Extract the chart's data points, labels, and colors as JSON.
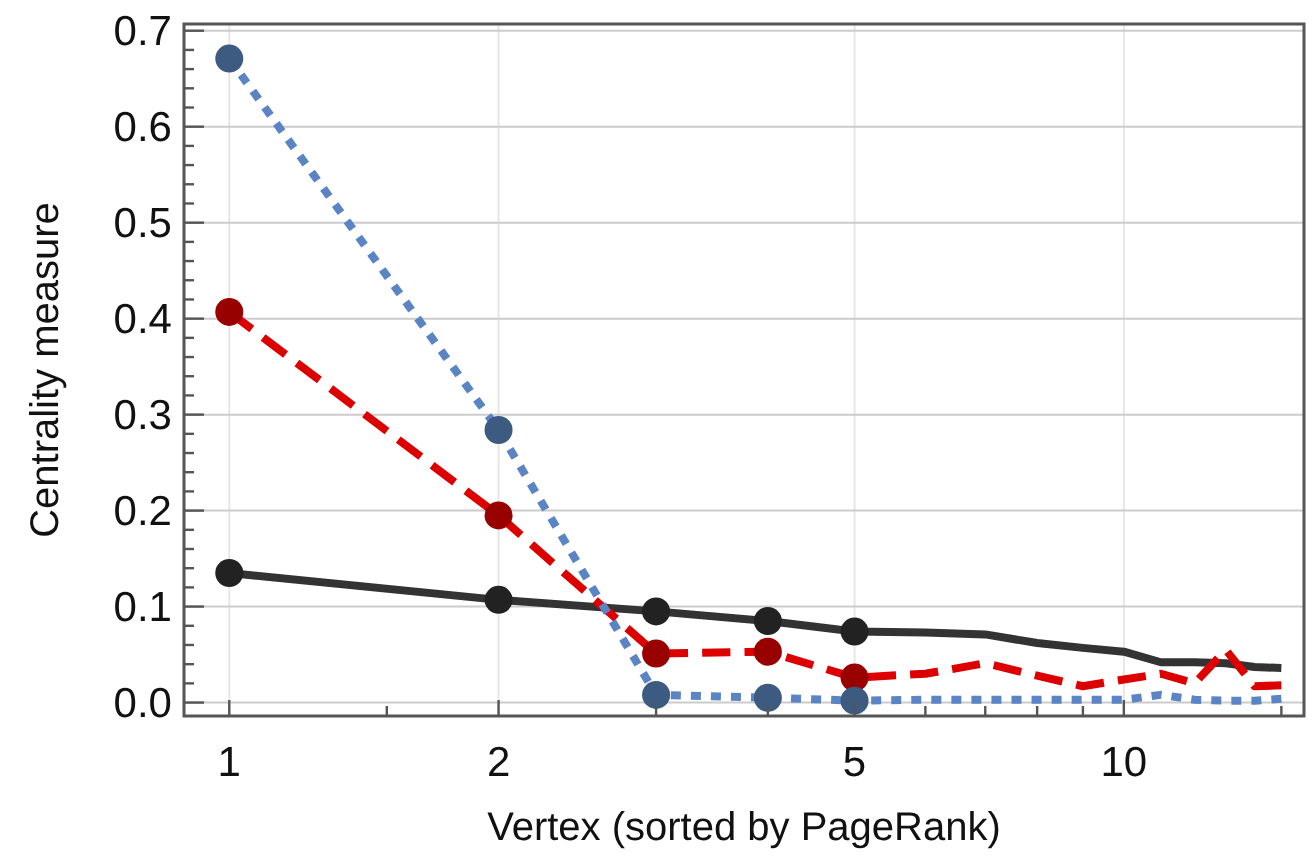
{
  "chart_data": {
    "type": "line",
    "xlabel": "Vertex (sorted by PageRank)",
    "ylabel": "Centrality measure",
    "log": "x",
    "grid": true,
    "xlim": [
      0.89,
      15.9
    ],
    "ylim": [
      -0.014,
      0.707
    ],
    "xticks": [
      1,
      {
        "value": 1.5,
        "label": null
      },
      2,
      {
        "value": 3,
        "label": null
      },
      {
        "value": 4,
        "label": null
      },
      5,
      {
        "value": 6,
        "label": null
      },
      {
        "value": 7,
        "label": null
      },
      {
        "value": 8,
        "label": null
      },
      {
        "value": 9,
        "label": null
      },
      10,
      {
        "value": 15,
        "label": null
      }
    ],
    "yticks": [
      {
        "value": 0,
        "label": "0.0"
      },
      {
        "value": 0.02,
        "label": null
      },
      {
        "value": 0.04,
        "label": null
      },
      {
        "value": 0.06,
        "label": null
      },
      {
        "value": 0.08,
        "label": null
      },
      0.1,
      {
        "value": 0.12,
        "label": null
      },
      {
        "value": 0.14,
        "label": null
      },
      {
        "value": 0.16,
        "label": null
      },
      {
        "value": 0.18,
        "label": null
      },
      0.2,
      {
        "value": 0.22,
        "label": null
      },
      {
        "value": 0.24,
        "label": null
      },
      {
        "value": 0.26,
        "label": null
      },
      {
        "value": 0.28,
        "label": null
      },
      0.3,
      {
        "value": 0.32,
        "label": null
      },
      {
        "value": 0.34,
        "label": null
      },
      {
        "value": 0.36,
        "label": null
      },
      {
        "value": 0.38,
        "label": null
      },
      0.4,
      {
        "value": 0.42,
        "label": null
      },
      {
        "value": 0.44,
        "label": null
      },
      {
        "value": 0.46,
        "label": null
      },
      {
        "value": 0.48,
        "label": null
      },
      0.5,
      {
        "value": 0.52,
        "label": null
      },
      {
        "value": 0.54,
        "label": null
      },
      {
        "value": 0.56,
        "label": null
      },
      {
        "value": 0.58,
        "label": null
      },
      0.6,
      {
        "value": 0.62,
        "label": null
      },
      {
        "value": 0.64,
        "label": null
      },
      {
        "value": 0.66,
        "label": null
      },
      {
        "value": 0.68,
        "label": null
      },
      0.7
    ],
    "series": [
      {
        "color": "#333333",
        "line_style": "solid",
        "x": [
          1,
          2,
          3,
          4,
          5,
          6,
          7,
          8,
          9,
          10,
          11,
          12,
          13,
          14,
          15
        ],
        "values": [
          0.135,
          0.107,
          0.095,
          0.085,
          0.074,
          0.073,
          0.071,
          0.062,
          0.057,
          0.053,
          0.042,
          0.042,
          0.041,
          0.037,
          0.036
        ]
      },
      {
        "color": "#dd0000",
        "line_style": "dashed",
        "x": [
          1,
          2,
          3,
          4,
          5,
          6,
          7,
          8,
          9,
          10,
          11,
          12,
          13,
          14,
          15
        ],
        "values": [
          0.407,
          0.195,
          0.051,
          0.053,
          0.026,
          0.03,
          0.041,
          0.028,
          0.017,
          0.024,
          0.03,
          0.02,
          0.055,
          0.017,
          0.018
        ]
      },
      {
        "color": "#5b84c4",
        "line_style": "dotted",
        "x": [
          1,
          2,
          3,
          4,
          5,
          6,
          7,
          8,
          9,
          10,
          11,
          12,
          13,
          14,
          15
        ],
        "values": [
          0.671,
          0.284,
          0.008,
          0.005,
          0.002,
          0.003,
          0.003,
          0.003,
          0.003,
          0.003,
          0.008,
          0.003,
          0.002,
          0.002,
          0.004
        ]
      },
      {
        "type": "scatter",
        "color": "#222222",
        "marker": "circle",
        "x": [
          1,
          2,
          3,
          4,
          5
        ],
        "values": [
          0.135,
          0.107,
          0.095,
          0.085,
          0.074
        ]
      },
      {
        "type": "scatter",
        "color": "#990000",
        "marker": "circle",
        "x": [
          1,
          2,
          3,
          4,
          5
        ],
        "values": [
          0.407,
          0.195,
          0.051,
          0.053,
          0.026
        ]
      },
      {
        "type": "scatter",
        "color": "#3d5a80",
        "marker": "circle",
        "x": [
          1,
          2,
          3,
          4,
          5
        ],
        "values": [
          0.671,
          0.284,
          0.008,
          0.005,
          0.002
        ]
      }
    ]
  }
}
